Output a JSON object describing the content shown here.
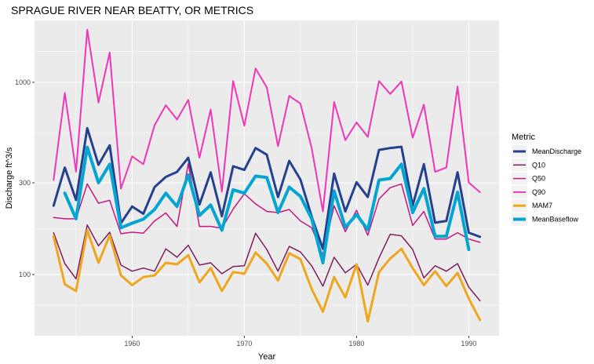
{
  "chart_data": {
    "type": "line",
    "title": "SPRAGUE RIVER NEAR BEATTY, OR  METRICS",
    "xlabel": "Year",
    "ylabel": "Discharge ft^3/s",
    "y_scale": "log10",
    "xlim": [
      1951.3,
      1992.7
    ],
    "ylim": [
      48,
      2100
    ],
    "x_ticks": [
      1960,
      1970,
      1980,
      1990
    ],
    "y_ticks": [
      100,
      300,
      1000
    ],
    "grid": true,
    "panel_background": "#ebebeb",
    "legend": {
      "title": "Metric",
      "position": "right"
    },
    "series": [
      {
        "name": "MeanDischarge",
        "color": "#25408f",
        "width": 3,
        "x": [
          1953,
          1954,
          1955,
          1956,
          1957,
          1958,
          1959,
          1960,
          1961,
          1962,
          1963,
          1964,
          1965,
          1966,
          1967,
          1968,
          1969,
          1970,
          1971,
          1972,
          1973,
          1974,
          1975,
          1976,
          1977,
          1978,
          1979,
          1980,
          1981,
          1982,
          1983,
          1984,
          1985,
          1986,
          1987,
          1988,
          1989,
          1990,
          1991
        ],
        "values": [
          228,
          360,
          244,
          578,
          372,
          470,
          185,
          226,
          207,
          285,
          322,
          342,
          405,
          231,
          340,
          201,
          366,
          350,
          455,
          420,
          253,
          390,
          312,
          200,
          136,
          335,
          213,
          302,
          253,
          445,
          455,
          462,
          228,
          375,
          186,
          190,
          340,
          165,
          157
        ]
      },
      {
        "name": "Q10",
        "color": "#7e1e5c",
        "width": 1.5,
        "x": [
          1953,
          1954,
          1955,
          1956,
          1957,
          1958,
          1959,
          1960,
          1961,
          1962,
          1963,
          1964,
          1965,
          1966,
          1967,
          1968,
          1969,
          1970,
          1971,
          1972,
          1973,
          1974,
          1975,
          1976,
          1977,
          1978,
          1979,
          1980,
          1981,
          1982,
          1983,
          1984,
          1985,
          1986,
          1987,
          1988,
          1989,
          1990,
          1991
        ],
        "values": [
          165,
          114,
          95,
          181,
          141,
          166,
          112,
          104,
          108,
          104,
          136,
          123,
          142,
          112,
          115,
          101,
          110,
          111,
          164,
          135,
          104,
          140,
          131,
          111,
          87,
          123,
          102,
          113,
          88,
          122,
          162,
          159,
          135,
          96,
          111,
          104,
          114,
          86,
          73
        ]
      },
      {
        "name": "Q50",
        "color": "#c61782",
        "width": 1.5,
        "x": [
          1953,
          1954,
          1955,
          1956,
          1957,
          1958,
          1959,
          1960,
          1961,
          1962,
          1963,
          1964,
          1965,
          1966,
          1967,
          1968,
          1969,
          1970,
          1971,
          1972,
          1973,
          1974,
          1975,
          1976,
          1977,
          1978,
          1979,
          1980,
          1981,
          1982,
          1983,
          1984,
          1985,
          1986,
          1987,
          1988,
          1989,
          1990,
          1991
        ],
        "values": [
          198,
          195,
          195,
          296,
          235,
          243,
          163,
          166,
          164,
          190,
          209,
          178,
          377,
          178,
          178,
          174,
          219,
          263,
          233,
          213,
          210,
          218,
          190,
          175,
          126,
          228,
          167,
          216,
          160,
          247,
          283,
          296,
          180,
          213,
          153,
          153,
          165,
          153,
          147
        ]
      },
      {
        "name": "Q90",
        "color": "#f036b8",
        "width": 2,
        "x": [
          1953,
          1954,
          1955,
          1956,
          1957,
          1958,
          1959,
          1960,
          1961,
          1962,
          1963,
          1964,
          1965,
          1966,
          1967,
          1968,
          1969,
          1970,
          1971,
          1972,
          1973,
          1974,
          1975,
          1976,
          1977,
          1978,
          1979,
          1980,
          1981,
          1982,
          1983,
          1984,
          1985,
          1986,
          1987,
          1988,
          1989,
          1990,
          1991
        ],
        "values": [
          310,
          880,
          343,
          1880,
          785,
          1430,
          280,
          412,
          375,
          598,
          760,
          640,
          810,
          405,
          722,
          270,
          1015,
          595,
          1180,
          940,
          465,
          850,
          775,
          455,
          213,
          790,
          500,
          618,
          520,
          1015,
          870,
          1010,
          515,
          765,
          342,
          360,
          950,
          301,
          268
        ]
      },
      {
        "name": "MAM7",
        "color": "#eea71c",
        "width": 3,
        "x": [
          1953,
          1954,
          1955,
          1956,
          1957,
          1958,
          1959,
          1960,
          1961,
          1962,
          1963,
          1964,
          1965,
          1966,
          1967,
          1968,
          1969,
          1970,
          1971,
          1972,
          1973,
          1974,
          1975,
          1976,
          1977,
          1978,
          1979,
          1980,
          1981,
          1982,
          1983,
          1984,
          1985,
          1986,
          1987,
          1988,
          1989,
          1990,
          1991
        ],
        "values": [
          158,
          89,
          82,
          170,
          115,
          160,
          99,
          88,
          97,
          99,
          115,
          113,
          126,
          91,
          108,
          82,
          103,
          101,
          130,
          114,
          93,
          129,
          120,
          84,
          64,
          97,
          76,
          113,
          57,
          103,
          121,
          136,
          108,
          88,
          104,
          87,
          102,
          75,
          58
        ]
      },
      {
        "name": "MeanBaseflow",
        "color": "#05a5d2",
        "width": 4,
        "x": [
          1954,
          1955,
          1956,
          1957,
          1958,
          1959,
          1960,
          1961,
          1962,
          1963,
          1964,
          1965,
          1966,
          1967,
          1968,
          1969,
          1970,
          1971,
          1972,
          1973,
          1974,
          1975,
          1976,
          1977,
          1978,
          1979,
          1980,
          1981,
          1982,
          1983,
          1984,
          1985,
          1986,
          1987,
          1988,
          1989,
          1990
        ],
        "values": [
          265,
          195,
          460,
          300,
          375,
          175,
          185,
          194,
          218,
          265,
          226,
          330,
          203,
          230,
          170,
          276,
          265,
          325,
          320,
          210,
          285,
          255,
          195,
          115,
          272,
          176,
          205,
          171,
          310,
          316,
          375,
          210,
          280,
          158,
          158,
          268,
          135
        ]
      }
    ]
  }
}
